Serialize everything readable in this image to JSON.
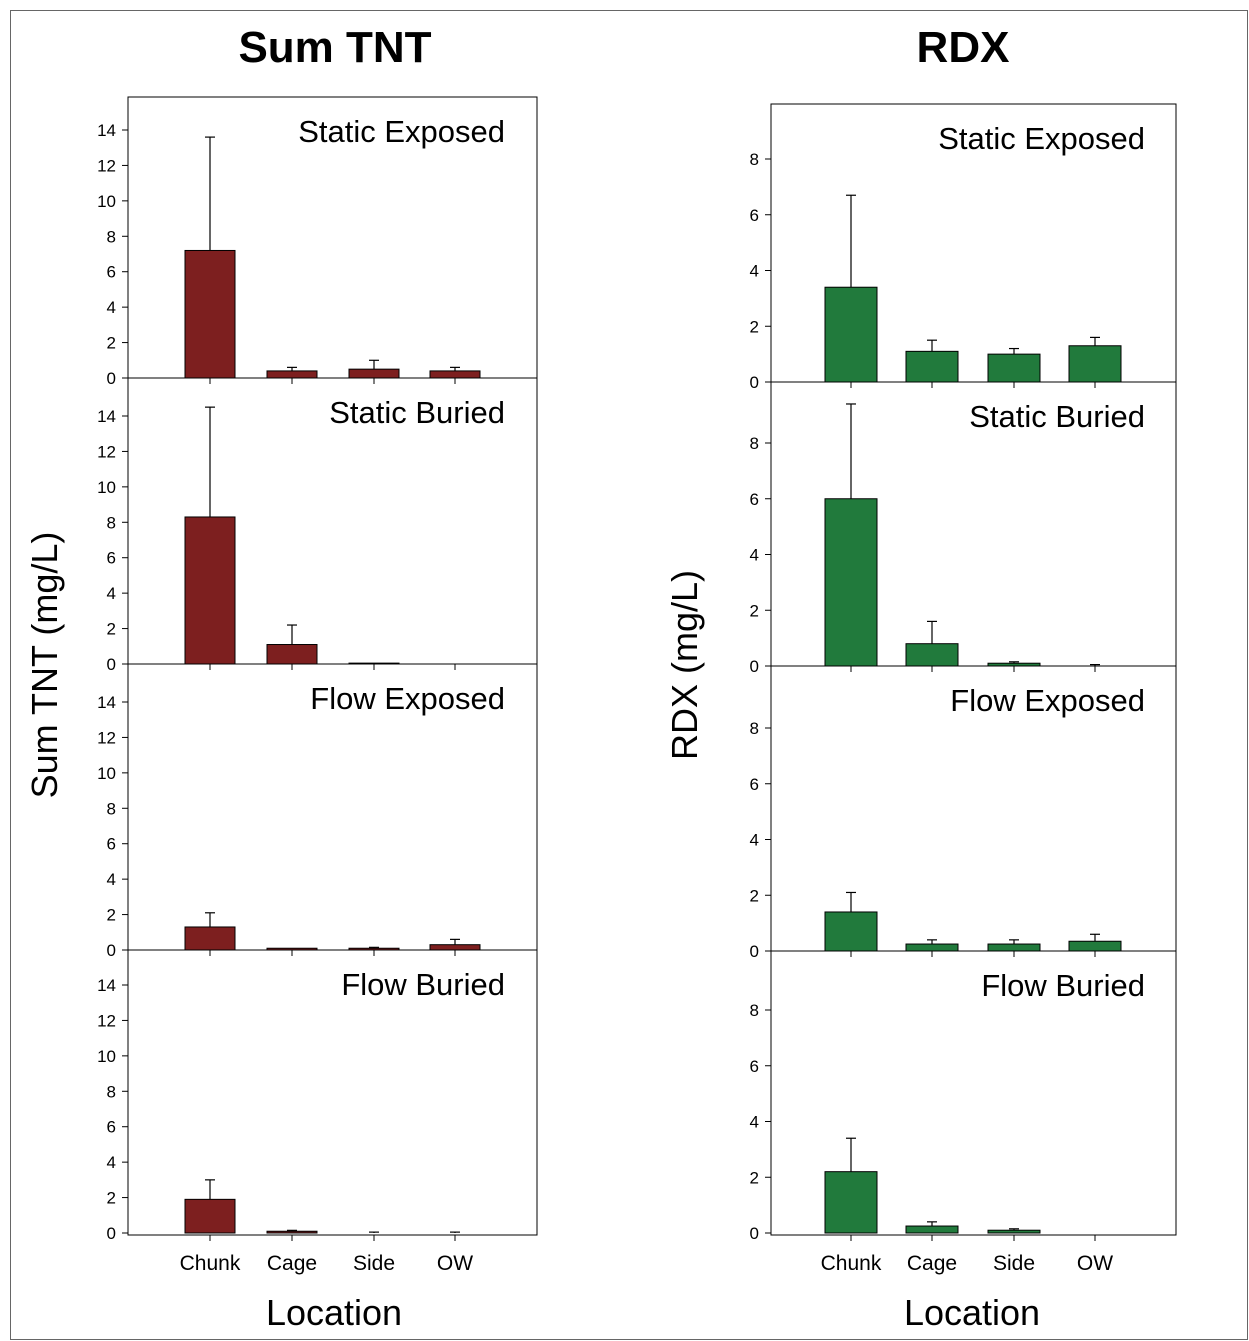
{
  "figure": {
    "charts": [
      {
        "column_title": "Sum TNT",
        "ylabel": "Sum TNT (mg/L)",
        "xlabel": "Location",
        "ylim": [
          0,
          14
        ],
        "yticks": [
          0,
          2,
          4,
          6,
          8,
          10,
          12,
          14
        ]
      },
      {
        "column_title": "RDX",
        "ylabel": "RDX (mg/L)",
        "xlabel": "Location",
        "ylim": [
          0,
          8
        ],
        "yticks": [
          0,
          2,
          4,
          6,
          8
        ]
      }
    ]
  },
  "chart_data": [
    {
      "type": "bar",
      "title": "Sum TNT",
      "ylabel": "Sum TNT (mg/L)",
      "xlabel": "Location",
      "categories": [
        "Chunk",
        "Cage",
        "Side",
        "OW"
      ],
      "ylim": [
        0,
        14
      ],
      "color": "#7d1f1f",
      "panels": [
        {
          "title": "Static Exposed",
          "values": [
            7.2,
            0.4,
            0.5,
            0.4
          ],
          "error": [
            6.4,
            0.2,
            0.5,
            0.2
          ]
        },
        {
          "title": "Static Buried",
          "values": [
            8.3,
            1.1,
            0.05,
            0.0
          ],
          "error": [
            6.2,
            1.1,
            0.0,
            0.0
          ]
        },
        {
          "title": "Flow Exposed",
          "values": [
            1.3,
            0.1,
            0.1,
            0.3
          ],
          "error": [
            0.8,
            0.0,
            0.05,
            0.3
          ]
        },
        {
          "title": "Flow Buried",
          "values": [
            1.9,
            0.1,
            0.0,
            0.0
          ],
          "error": [
            1.1,
            0.05,
            0.05,
            0.05
          ]
        }
      ]
    },
    {
      "type": "bar",
      "title": "RDX",
      "ylabel": "RDX (mg/L)",
      "xlabel": "Location",
      "categories": [
        "Chunk",
        "Cage",
        "Side",
        "OW"
      ],
      "ylim": [
        0,
        8
      ],
      "color": "#217a3c",
      "panels": [
        {
          "title": "Static Exposed",
          "values": [
            3.4,
            1.1,
            1.0,
            1.3
          ],
          "error": [
            3.3,
            0.4,
            0.2,
            0.3
          ]
        },
        {
          "title": "Static Buried",
          "values": [
            6.0,
            0.8,
            0.1,
            0.0
          ],
          "error": [
            3.4,
            0.8,
            0.05,
            0.05
          ]
        },
        {
          "title": "Flow Exposed",
          "values": [
            1.4,
            0.25,
            0.25,
            0.35
          ],
          "error": [
            0.7,
            0.15,
            0.15,
            0.25
          ]
        },
        {
          "title": "Flow Buried",
          "values": [
            2.2,
            0.25,
            0.1,
            0.0
          ],
          "error": [
            1.2,
            0.15,
            0.05,
            0.0
          ]
        }
      ]
    }
  ]
}
